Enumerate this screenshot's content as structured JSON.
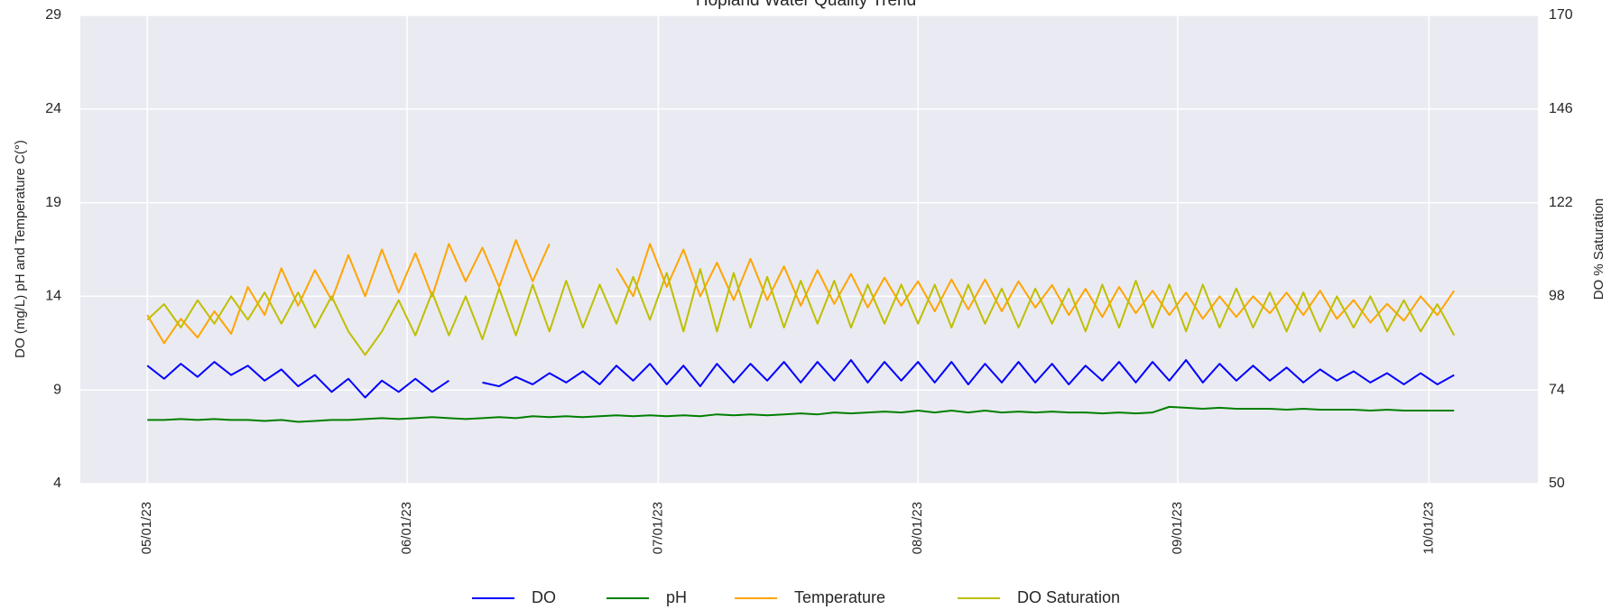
{
  "chart_data": {
    "type": "line",
    "title": "Hopland Water Quality Trend",
    "ylabel": "DO (mg/L) pH and Temperature C(°)",
    "y2label": "DO % Saturation",
    "xlim": [
      "2023-04-23",
      "2023-10-14"
    ],
    "xticks": [
      {
        "value": "2023-05-01",
        "label": "05/01/23"
      },
      {
        "value": "2023-06-01",
        "label": "06/01/23"
      },
      {
        "value": "2023-07-01",
        "label": "07/01/23"
      },
      {
        "value": "2023-08-01",
        "label": "08/01/23"
      },
      {
        "value": "2023-09-01",
        "label": "09/01/23"
      },
      {
        "value": "2023-10-01",
        "label": "10/01/23"
      }
    ],
    "ylim": [
      4,
      29
    ],
    "yticks": [
      4,
      9,
      14,
      19,
      24,
      29
    ],
    "y2lim": [
      50,
      170
    ],
    "y2ticks": [
      50,
      74,
      98,
      122,
      146,
      170
    ],
    "grid": true,
    "legend": "bottom",
    "x": [
      "2023-05-01",
      "2023-05-03",
      "2023-05-05",
      "2023-05-07",
      "2023-05-09",
      "2023-05-11",
      "2023-05-13",
      "2023-05-15",
      "2023-05-17",
      "2023-05-19",
      "2023-05-21",
      "2023-05-23",
      "2023-05-25",
      "2023-05-27",
      "2023-05-29",
      "2023-05-31",
      "2023-06-02",
      "2023-06-04",
      "2023-06-06",
      "2023-06-08",
      "2023-06-10",
      "2023-06-12",
      "2023-06-14",
      "2023-06-16",
      "2023-06-18",
      "2023-06-20",
      "2023-06-22",
      "2023-06-24",
      "2023-06-26",
      "2023-06-28",
      "2023-06-30",
      "2023-07-02",
      "2023-07-04",
      "2023-07-06",
      "2023-07-08",
      "2023-07-10",
      "2023-07-12",
      "2023-07-14",
      "2023-07-16",
      "2023-07-18",
      "2023-07-20",
      "2023-07-22",
      "2023-07-24",
      "2023-07-26",
      "2023-07-28",
      "2023-07-30",
      "2023-08-01",
      "2023-08-03",
      "2023-08-05",
      "2023-08-07",
      "2023-08-09",
      "2023-08-11",
      "2023-08-13",
      "2023-08-15",
      "2023-08-17",
      "2023-08-19",
      "2023-08-21",
      "2023-08-23",
      "2023-08-25",
      "2023-08-27",
      "2023-08-29",
      "2023-08-31",
      "2023-09-02",
      "2023-09-04",
      "2023-09-06",
      "2023-09-08",
      "2023-09-10",
      "2023-09-12",
      "2023-09-14",
      "2023-09-16",
      "2023-09-18",
      "2023-09-20",
      "2023-09-22",
      "2023-09-24",
      "2023-09-26",
      "2023-09-28",
      "2023-09-30",
      "2023-10-02",
      "2023-10-04"
    ],
    "series": [
      {
        "name": "DO",
        "color": "#0000ff",
        "values": [
          10.3,
          9.6,
          10.4,
          9.7,
          10.5,
          9.8,
          10.3,
          9.5,
          10.1,
          9.2,
          9.8,
          8.9,
          9.6,
          8.6,
          9.5,
          8.9,
          9.6,
          8.9,
          9.5,
          null,
          9.4,
          9.2,
          9.7,
          9.3,
          9.9,
          9.4,
          10.0,
          9.3,
          10.3,
          9.5,
          10.4,
          9.3,
          10.3,
          9.2,
          10.4,
          9.4,
          10.4,
          9.5,
          10.5,
          9.4,
          10.5,
          9.5,
          10.6,
          9.4,
          10.5,
          9.5,
          10.5,
          9.4,
          10.5,
          9.3,
          10.4,
          9.4,
          10.5,
          9.4,
          10.4,
          9.3,
          10.3,
          9.5,
          10.5,
          9.4,
          10.5,
          9.5,
          10.6,
          9.4,
          10.4,
          9.5,
          10.3,
          9.5,
          10.2,
          9.4,
          10.1,
          9.5,
          10.0,
          9.4,
          9.9,
          9.3,
          9.9,
          9.3,
          9.8
        ]
      },
      {
        "name": "pH",
        "color": "#008000",
        "values": [
          7.4,
          7.4,
          7.45,
          7.4,
          7.45,
          7.4,
          7.4,
          7.35,
          7.4,
          7.3,
          7.35,
          7.4,
          7.4,
          7.45,
          7.5,
          7.45,
          7.5,
          7.55,
          7.5,
          7.45,
          7.5,
          7.55,
          7.5,
          7.6,
          7.55,
          7.6,
          7.55,
          7.6,
          7.65,
          7.6,
          7.65,
          7.6,
          7.65,
          7.6,
          7.7,
          7.65,
          7.7,
          7.65,
          7.7,
          7.75,
          7.7,
          7.8,
          7.75,
          7.8,
          7.85,
          7.8,
          7.9,
          7.8,
          7.9,
          7.8,
          7.9,
          7.8,
          7.85,
          7.8,
          7.85,
          7.8,
          7.8,
          7.75,
          7.8,
          7.75,
          7.8,
          8.1,
          8.05,
          8.0,
          8.05,
          8.0,
          8.0,
          8.0,
          7.95,
          8.0,
          7.95,
          7.95,
          7.95,
          7.9,
          7.95,
          7.9,
          7.9,
          7.9,
          7.9
        ]
      },
      {
        "name": "Temperature",
        "color": "#ffa500",
        "values": [
          13.0,
          11.5,
          12.8,
          11.8,
          13.2,
          12.0,
          14.5,
          13.0,
          15.5,
          13.5,
          15.4,
          13.8,
          16.2,
          14.0,
          16.5,
          14.2,
          16.3,
          14.0,
          16.8,
          14.8,
          16.6,
          14.5,
          17.0,
          14.8,
          16.8,
          null,
          null,
          null,
          15.5,
          14.0,
          16.8,
          14.5,
          16.5,
          14.0,
          15.8,
          13.8,
          16.0,
          13.8,
          15.6,
          13.5,
          15.4,
          13.6,
          15.2,
          13.4,
          15.0,
          13.5,
          14.8,
          13.2,
          14.9,
          13.3,
          14.9,
          13.2,
          14.8,
          13.4,
          14.6,
          13.0,
          14.4,
          12.9,
          14.5,
          13.1,
          14.3,
          13.0,
          14.2,
          12.8,
          14.0,
          12.9,
          14.0,
          13.1,
          14.2,
          13.0,
          14.3,
          12.8,
          13.8,
          12.6,
          13.6,
          12.7,
          14.0,
          13.0,
          14.3
        ]
      },
      {
        "name": "DO Saturation",
        "color": "#bfbf00",
        "axis": "y2",
        "values": [
          92,
          96,
          90,
          97,
          91,
          98,
          92,
          99,
          91,
          99,
          90,
          98,
          89,
          83,
          89,
          97,
          88,
          99,
          88,
          98,
          87,
          100,
          88,
          101,
          89,
          102,
          90,
          101,
          91,
          103,
          92,
          104,
          89,
          105,
          89,
          104,
          90,
          103,
          90,
          102,
          91,
          102,
          90,
          101,
          91,
          101,
          91,
          101,
          90,
          101,
          91,
          100,
          90,
          100,
          91,
          100,
          89,
          101,
          90,
          102,
          90,
          101,
          89,
          101,
          90,
          100,
          90,
          99,
          89,
          99,
          89,
          98,
          90,
          98,
          89,
          97,
          89,
          96,
          88
        ]
      }
    ]
  }
}
